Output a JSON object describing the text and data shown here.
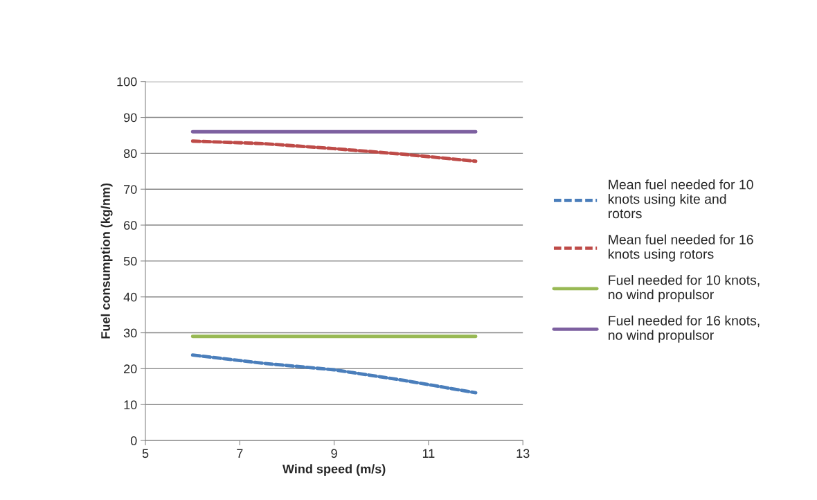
{
  "chart_data": {
    "type": "line",
    "xlabel": "Wind speed (m/s)",
    "ylabel": "Fuel consumption (kg/nm)",
    "xlim": [
      5,
      13
    ],
    "xticks": [
      5,
      7,
      9,
      11,
      13
    ],
    "ylim": [
      0,
      100
    ],
    "yticks": [
      0,
      10,
      20,
      30,
      40,
      50,
      60,
      70,
      80,
      90,
      100
    ],
    "grid": "y",
    "legend": "right",
    "marker": "none",
    "series": [
      {
        "name": "Mean fuel needed for 10 knots using kite and rotors",
        "color": "#4a7ebb",
        "line_style": "dashed",
        "x": [
          6,
          7.5,
          9,
          10.5,
          12
        ],
        "values": [
          23.8,
          21.5,
          19.7,
          16.7,
          13.3
        ]
      },
      {
        "name": "Mean fuel needed for 16 knots using rotors",
        "color": "#be4b48",
        "line_style": "dashed",
        "x": [
          6,
          7.5,
          9,
          10.5,
          12
        ],
        "values": [
          83.4,
          82.7,
          81.3,
          79.7,
          77.8
        ]
      },
      {
        "name": "Fuel needed for 10 knots, no wind propulsor",
        "color": "#98b954",
        "line_style": "solid",
        "x": [
          6,
          12
        ],
        "values": [
          29,
          29
        ]
      },
      {
        "name": "Fuel needed for 16 knots, no wind propulsor",
        "color": "#7d60a0",
        "line_style": "solid",
        "x": [
          6,
          12
        ],
        "values": [
          86,
          86
        ]
      }
    ]
  }
}
